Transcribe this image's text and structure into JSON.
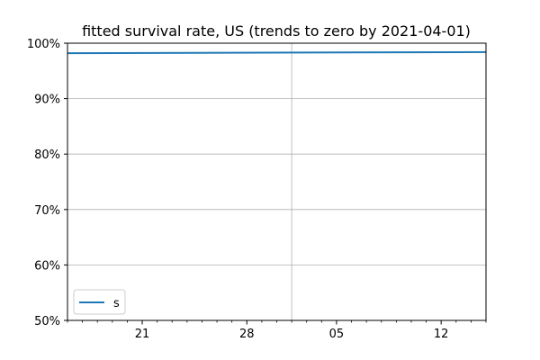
{
  "chart_data": {
    "type": "line",
    "title": "fitted survival rate, US (trends to zero by 2021-04-01)",
    "xlabel": "",
    "ylabel": "",
    "x_range": [
      "2020-02-16",
      "2020-03-15"
    ],
    "ylim": [
      0.5,
      1.0
    ],
    "y_ticks": [
      0.5,
      0.6,
      0.7,
      0.8,
      0.9,
      1.0
    ],
    "y_tick_labels": [
      "50%",
      "60%",
      "70%",
      "80%",
      "90%",
      "100%"
    ],
    "x_ticks": [
      "2020-02-21",
      "2020-02-28",
      "2020-03-05",
      "2020-03-12"
    ],
    "x_tick_labels": [
      "21",
      "28",
      "05",
      "12"
    ],
    "x_minor_ticks": [
      "2020-02-16",
      "2020-02-17",
      "2020-02-18",
      "2020-02-19",
      "2020-02-20",
      "2020-02-22",
      "2020-02-23",
      "2020-02-24",
      "2020-02-25",
      "2020-02-26",
      "2020-02-27",
      "2020-02-29",
      "2020-03-01",
      "2020-03-02",
      "2020-03-03",
      "2020-03-04",
      "2020-03-06",
      "2020-03-07",
      "2020-03-08",
      "2020-03-09",
      "2020-03-10",
      "2020-03-11",
      "2020-03-13",
      "2020-03-14",
      "2020-03-15"
    ],
    "x_grid": [
      "2020-03-02"
    ],
    "y_grid": [
      0.6,
      0.7,
      0.8,
      0.9
    ],
    "grid": true,
    "legend": "lower-left",
    "series": [
      {
        "name": "s",
        "color": "#1f77b4",
        "x": [
          "2020-02-16",
          "2020-03-15"
        ],
        "y": [
          0.982,
          0.984
        ]
      }
    ]
  }
}
